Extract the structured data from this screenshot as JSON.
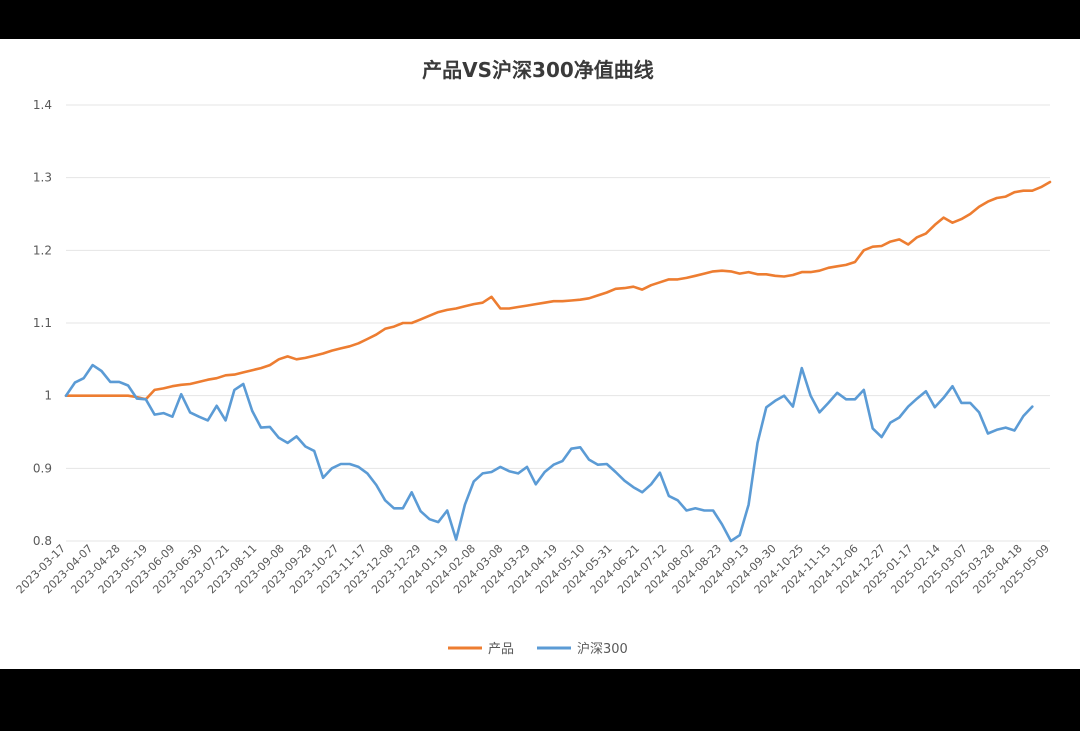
{
  "chart_data": {
    "type": "line",
    "title": "产品VS沪深300净值曲线",
    "xlabel": "",
    "ylabel": "",
    "ylim": [
      0.8,
      1.4
    ],
    "yticks": [
      "0.8",
      "0.9",
      "1",
      "1.1",
      "1.2",
      "1.3",
      "1.4"
    ],
    "grid": true,
    "legend_position": "bottom",
    "x_tick_labels": [
      "2023-03-17",
      "2023-04-07",
      "2023-04-28",
      "2023-05-19",
      "2023-06-09",
      "2023-06-30",
      "2023-07-21",
      "2023-08-11",
      "2023-09-08",
      "2023-09-28",
      "2023-10-27",
      "2023-11-17",
      "2023-12-08",
      "2023-12-29",
      "2024-01-19",
      "2024-02-08",
      "2024-03-08",
      "2024-03-29",
      "2024-04-19",
      "2024-05-10",
      "2024-05-31",
      "2024-06-21",
      "2024-07-12",
      "2024-08-02",
      "2024-08-23",
      "2024-09-13",
      "2024-09-30",
      "2024-10-25",
      "2024-11-15",
      "2024-12-06",
      "2024-12-27",
      "2025-01-17",
      "2025-02-14",
      "2025-03-07",
      "2025-03-28",
      "2025-04-18",
      "2025-05-09"
    ],
    "series": [
      {
        "name": "产品",
        "color": "#ED7D31",
        "values": [
          1.0,
          1.0,
          1.0,
          1.0,
          1.0,
          1.0,
          1.0,
          1.0,
          0.998,
          0.995,
          1.008,
          1.01,
          1.013,
          1.015,
          1.016,
          1.019,
          1.022,
          1.024,
          1.028,
          1.029,
          1.032,
          1.035,
          1.038,
          1.042,
          1.05,
          1.054,
          1.05,
          1.052,
          1.055,
          1.058,
          1.062,
          1.065,
          1.068,
          1.072,
          1.078,
          1.084,
          1.092,
          1.095,
          1.1,
          1.1,
          1.105,
          1.11,
          1.115,
          1.118,
          1.12,
          1.123,
          1.126,
          1.128,
          1.136,
          1.12,
          1.12,
          1.122,
          1.124,
          1.126,
          1.128,
          1.13,
          1.13,
          1.131,
          1.132,
          1.134,
          1.138,
          1.142,
          1.147,
          1.148,
          1.15,
          1.146,
          1.152,
          1.156,
          1.16,
          1.16,
          1.162,
          1.165,
          1.168,
          1.171,
          1.172,
          1.171,
          1.168,
          1.17,
          1.167,
          1.167,
          1.165,
          1.164,
          1.166,
          1.17,
          1.17,
          1.172,
          1.176,
          1.178,
          1.18,
          1.184,
          1.2,
          1.205,
          1.206,
          1.212,
          1.215,
          1.208,
          1.218,
          1.223,
          1.235,
          1.245,
          1.238,
          1.243,
          1.25,
          1.26,
          1.267,
          1.272,
          1.274,
          1.28,
          1.282,
          1.282,
          1.287,
          1.294
        ]
      },
      {
        "name": "沪深300",
        "color": "#5B9BD5",
        "values": [
          1.0,
          1.018,
          1.024,
          1.042,
          1.034,
          1.019,
          1.019,
          1.014,
          0.996,
          0.995,
          0.974,
          0.976,
          0.971,
          1.002,
          0.977,
          0.971,
          0.966,
          0.986,
          0.966,
          1.008,
          1.016,
          0.979,
          0.956,
          0.957,
          0.942,
          0.935,
          0.944,
          0.93,
          0.924,
          0.887,
          0.9,
          0.906,
          0.906,
          0.902,
          0.893,
          0.877,
          0.856,
          0.845,
          0.845,
          0.867,
          0.841,
          0.83,
          0.826,
          0.842,
          0.802,
          0.85,
          0.882,
          0.893,
          0.895,
          0.902,
          0.896,
          0.893,
          0.902,
          0.878,
          0.895,
          0.905,
          0.91,
          0.927,
          0.929,
          0.912,
          0.905,
          0.906,
          0.895,
          0.883,
          0.874,
          0.867,
          0.878,
          0.894,
          0.862,
          0.856,
          0.842,
          0.845,
          0.842,
          0.842,
          0.823,
          0.8,
          0.808,
          0.85,
          0.935,
          0.984,
          0.993,
          1.0,
          0.985,
          1.038,
          1.0,
          0.977,
          0.99,
          1.004,
          0.995,
          0.995,
          1.008,
          0.955,
          0.943,
          0.963,
          0.97,
          0.985,
          0.996,
          1.006,
          0.984,
          0.997,
          1.013,
          0.99,
          0.99,
          0.977,
          0.948,
          0.953,
          0.956,
          0.952,
          0.972,
          0.985
        ]
      }
    ]
  }
}
